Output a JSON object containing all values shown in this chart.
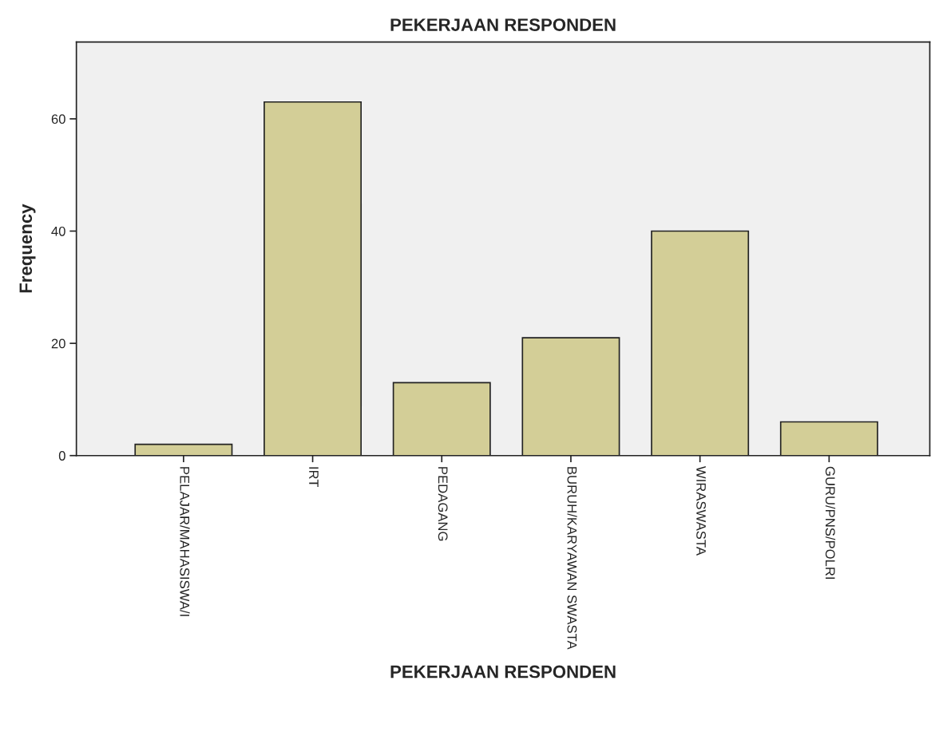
{
  "chart_data": {
    "type": "bar",
    "title": "PEKERJAAN RESPONDEN",
    "xlabel": "PEKERJAAN RESPONDEN",
    "ylabel": "Frequency",
    "categories": [
      "PELAJAR/MAHASISWA/I",
      "IRT",
      "PEDAGANG",
      "BURUH/KARYAWAN SWASTA",
      "WIRASWASTA",
      "GURU/PNS/POLRI"
    ],
    "values": [
      2,
      63,
      13,
      21,
      40,
      6
    ],
    "color": "#d3ce97",
    "ylim": [
      0,
      73.7
    ],
    "yticks": [
      0,
      20,
      40,
      60
    ],
    "grid": false,
    "legend": false
  }
}
